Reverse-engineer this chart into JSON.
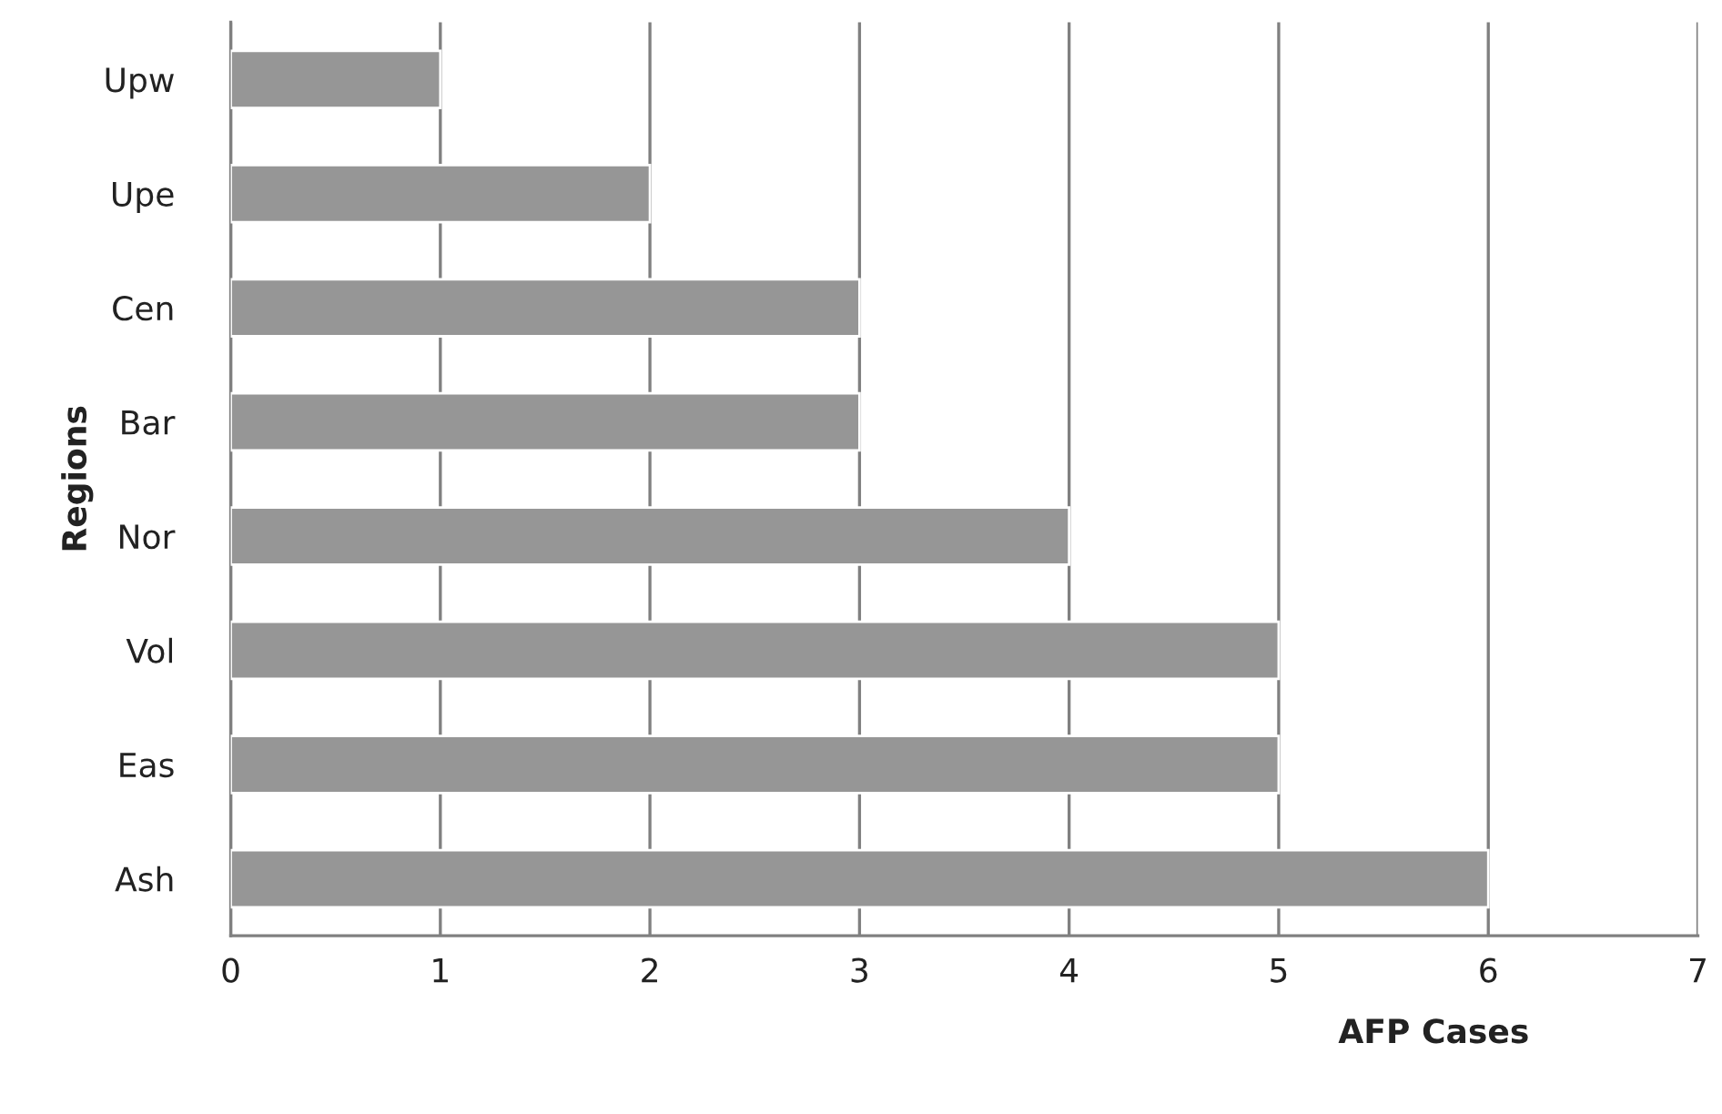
{
  "chart_data": {
    "type": "bar",
    "orientation": "horizontal",
    "xlabel": "AFP Cases",
    "ylabel": "Regions",
    "categories": [
      "Upw",
      "Upe",
      "Cen",
      "Bar",
      "Nor",
      "Vol",
      "Eas",
      "Ash"
    ],
    "values": [
      1,
      2,
      3,
      3,
      4,
      5,
      5,
      6
    ],
    "color": "#969696",
    "xlim": [
      0,
      7
    ],
    "xticks": [
      0,
      1,
      2,
      3,
      4,
      5,
      6,
      7
    ],
    "grid": "x"
  }
}
